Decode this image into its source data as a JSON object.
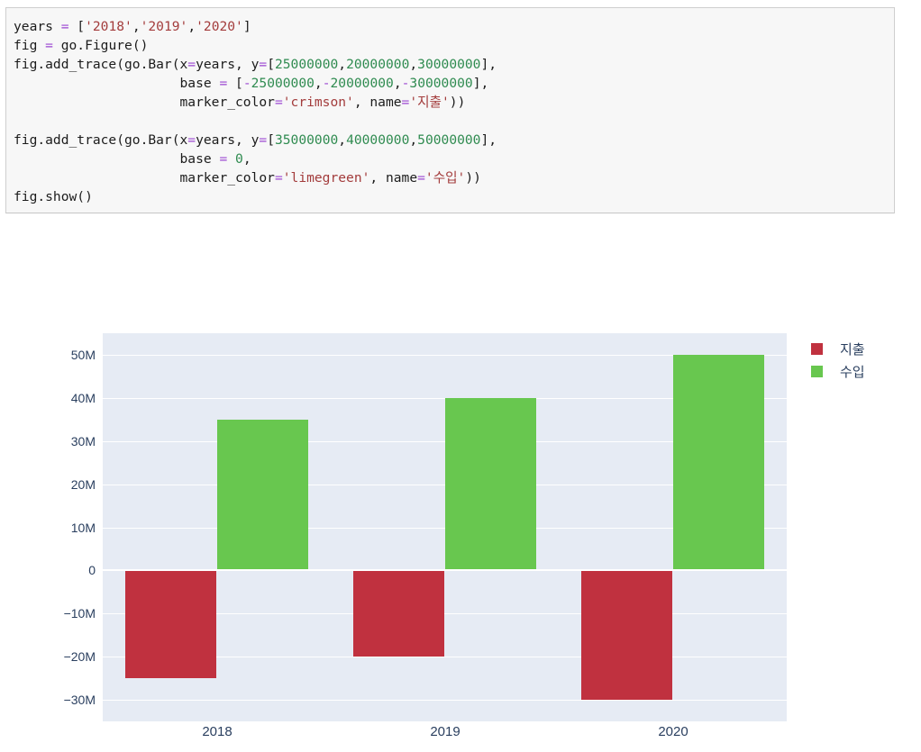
{
  "code_cell": {
    "language": "python",
    "lines": [
      [
        {
          "t": "years ",
          "c": "p"
        },
        {
          "t": "=",
          "c": "o"
        },
        {
          "t": " [",
          "c": "p"
        },
        {
          "t": "'2018'",
          "c": "s"
        },
        {
          "t": ",",
          "c": "p"
        },
        {
          "t": "'2019'",
          "c": "s"
        },
        {
          "t": ",",
          "c": "p"
        },
        {
          "t": "'2020'",
          "c": "s"
        },
        {
          "t": "]",
          "c": "p"
        }
      ],
      [
        {
          "t": "fig ",
          "c": "p"
        },
        {
          "t": "=",
          "c": "o"
        },
        {
          "t": " go.Figure()",
          "c": "p"
        }
      ],
      [
        {
          "t": "fig.add_trace(go.Bar(x",
          "c": "p"
        },
        {
          "t": "=",
          "c": "o"
        },
        {
          "t": "years, y",
          "c": "p"
        },
        {
          "t": "=",
          "c": "o"
        },
        {
          "t": "[",
          "c": "p"
        },
        {
          "t": "25000000",
          "c": "m"
        },
        {
          "t": ",",
          "c": "p"
        },
        {
          "t": "20000000",
          "c": "m"
        },
        {
          "t": ",",
          "c": "p"
        },
        {
          "t": "30000000",
          "c": "m"
        },
        {
          "t": "],",
          "c": "p"
        }
      ],
      [
        {
          "t": "                     base ",
          "c": "p"
        },
        {
          "t": "=",
          "c": "o"
        },
        {
          "t": " [",
          "c": "p"
        },
        {
          "t": "-",
          "c": "o"
        },
        {
          "t": "25000000",
          "c": "m"
        },
        {
          "t": ",",
          "c": "p"
        },
        {
          "t": "-",
          "c": "o"
        },
        {
          "t": "20000000",
          "c": "m"
        },
        {
          "t": ",",
          "c": "p"
        },
        {
          "t": "-",
          "c": "o"
        },
        {
          "t": "30000000",
          "c": "m"
        },
        {
          "t": "],",
          "c": "p"
        }
      ],
      [
        {
          "t": "                     marker_color",
          "c": "p"
        },
        {
          "t": "=",
          "c": "o"
        },
        {
          "t": "'crimson'",
          "c": "s"
        },
        {
          "t": ", name",
          "c": "p"
        },
        {
          "t": "=",
          "c": "o"
        },
        {
          "t": "'지출'",
          "c": "s"
        },
        {
          "t": "))",
          "c": "p"
        }
      ],
      [],
      [
        {
          "t": "fig.add_trace(go.Bar(x",
          "c": "p"
        },
        {
          "t": "=",
          "c": "o"
        },
        {
          "t": "years, y",
          "c": "p"
        },
        {
          "t": "=",
          "c": "o"
        },
        {
          "t": "[",
          "c": "p"
        },
        {
          "t": "35000000",
          "c": "m"
        },
        {
          "t": ",",
          "c": "p"
        },
        {
          "t": "40000000",
          "c": "m"
        },
        {
          "t": ",",
          "c": "p"
        },
        {
          "t": "50000000",
          "c": "m"
        },
        {
          "t": "],",
          "c": "p"
        }
      ],
      [
        {
          "t": "                     base ",
          "c": "p"
        },
        {
          "t": "=",
          "c": "o"
        },
        {
          "t": " ",
          "c": "p"
        },
        {
          "t": "0",
          "c": "m"
        },
        {
          "t": ",",
          "c": "p"
        }
      ],
      [
        {
          "t": "                     marker_color",
          "c": "p"
        },
        {
          "t": "=",
          "c": "o"
        },
        {
          "t": "'limegreen'",
          "c": "s"
        },
        {
          "t": ", name",
          "c": "p"
        },
        {
          "t": "=",
          "c": "o"
        },
        {
          "t": "'수입'",
          "c": "s"
        },
        {
          "t": "))",
          "c": "p"
        }
      ],
      [
        {
          "t": "fig.show()",
          "c": "p"
        }
      ]
    ]
  },
  "chart_data": {
    "type": "bar",
    "title": "",
    "xlabel": "",
    "ylabel": "",
    "categories": [
      "2018",
      "2019",
      "2020"
    ],
    "series": [
      {
        "name": "지출",
        "color": "#c0313f",
        "css_color_name": "crimson",
        "values": [
          25000000,
          20000000,
          30000000
        ],
        "base": [
          -25000000,
          -20000000,
          -30000000
        ]
      },
      {
        "name": "수입",
        "color": "#68c74f",
        "css_color_name": "limegreen",
        "values": [
          35000000,
          40000000,
          50000000
        ],
        "base": 0
      }
    ],
    "barmode": "group",
    "bargap": 0.2,
    "ylim": [
      -35000000,
      55000000
    ],
    "yticks": [
      {
        "v": -30000000,
        "label": "−30M"
      },
      {
        "v": -20000000,
        "label": "−20M"
      },
      {
        "v": -10000000,
        "label": "−10M"
      },
      {
        "v": 0,
        "label": "0"
      },
      {
        "v": 10000000,
        "label": "10M"
      },
      {
        "v": 20000000,
        "label": "20M"
      },
      {
        "v": 30000000,
        "label": "30M"
      },
      {
        "v": 40000000,
        "label": "40M"
      },
      {
        "v": 50000000,
        "label": "50M"
      }
    ],
    "grid": true,
    "gridcolor": "#ffffff",
    "zeroline_color": "#ffffff",
    "plot_bg": "#e6ebf4",
    "paper_bg": "#ffffff",
    "tick_color": "#2a3f5f",
    "legend_position": "top-right"
  }
}
